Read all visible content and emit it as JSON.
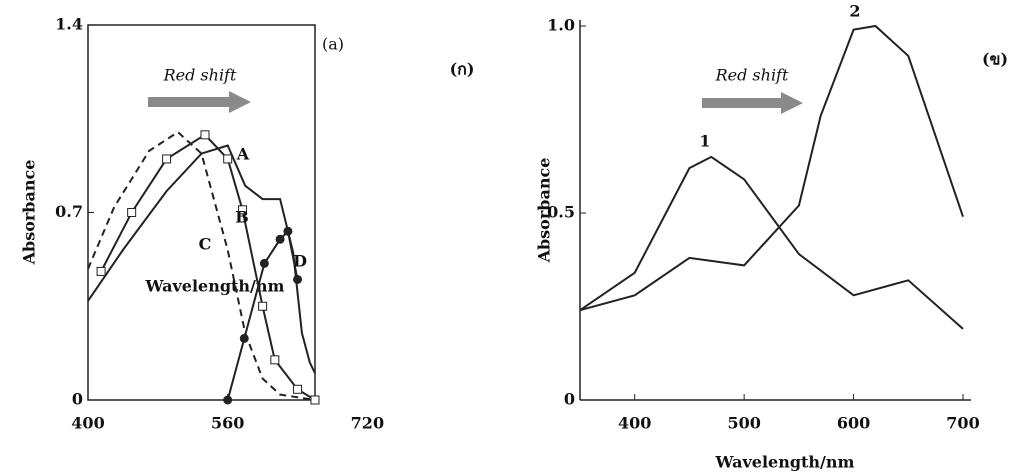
{
  "chart_data": [
    {
      "type": "line",
      "panel": "(a)",
      "side_label": "(ก)",
      "annotation": "Red shift",
      "ylabel": "Absorbance",
      "xlabel": "Wavelength/nm",
      "xlim": [
        400,
        660
      ],
      "xticks": [
        400,
        560,
        720
      ],
      "ylim": [
        0,
        1.4
      ],
      "yticks": [
        0,
        0.7,
        1.4
      ],
      "box": true,
      "series": [
        {
          "name": "C",
          "color": "#222222",
          "dash": true,
          "marker": null,
          "x": [
            400,
            430,
            470,
            503,
            530,
            560,
            580,
            600,
            620,
            660
          ],
          "values": [
            0.49,
            0.72,
            0.93,
            1.0,
            0.92,
            0.56,
            0.25,
            0.08,
            0.02,
            0.0
          ]
        },
        {
          "name": "B",
          "color": "#222222",
          "dash": false,
          "marker": "square",
          "x": [
            415,
            450,
            490,
            534,
            560,
            577,
            600,
            614,
            640,
            660
          ],
          "values": [
            0.48,
            0.7,
            0.9,
            0.99,
            0.9,
            0.71,
            0.35,
            0.15,
            0.04,
            0.0
          ]
        },
        {
          "name": "A",
          "color": "#222222",
          "dash": false,
          "marker": null,
          "x": [
            400,
            440,
            490,
            530,
            560,
            580,
            600,
            620,
            635,
            645,
            654,
            660
          ],
          "values": [
            0.37,
            0.56,
            0.78,
            0.92,
            0.95,
            0.8,
            0.75,
            0.75,
            0.55,
            0.25,
            0.14,
            0.1
          ]
        },
        {
          "name": "D",
          "color": "#222222",
          "dash": false,
          "marker": "circle",
          "x": [
            560,
            579,
            602,
            620,
            629,
            640
          ],
          "values": [
            0,
            0.23,
            0.51,
            0.6,
            0.63,
            0.45
          ]
        }
      ]
    },
    {
      "type": "line",
      "side_label": "(ข)",
      "annotation": "Red shift",
      "ylabel": "Absorbance",
      "xlabel": "Wavelength/nm",
      "xlim": [
        350,
        700
      ],
      "xticks": [
        400,
        500,
        600,
        700
      ],
      "ylim": [
        0,
        1.0
      ],
      "yticks": [
        0,
        0.5,
        {
          "value": 1,
          "label": "1.0"
        }
      ],
      "box": false,
      "series": [
        {
          "name": "1",
          "color": "#222222",
          "dash": false,
          "marker": null,
          "x": [
            350,
            400,
            450,
            470,
            500,
            550,
            600,
            650,
            700
          ],
          "values": [
            0.24,
            0.34,
            0.62,
            0.65,
            0.59,
            0.39,
            0.28,
            0.32,
            0.19
          ]
        },
        {
          "name": "2",
          "color": "#222222",
          "dash": false,
          "marker": null,
          "x": [
            350,
            400,
            450,
            500,
            550,
            570,
            600,
            620,
            650,
            700
          ],
          "values": [
            0.24,
            0.28,
            0.38,
            0.36,
            0.52,
            0.76,
            0.99,
            1.0,
            0.92,
            0.49
          ]
        }
      ]
    }
  ]
}
